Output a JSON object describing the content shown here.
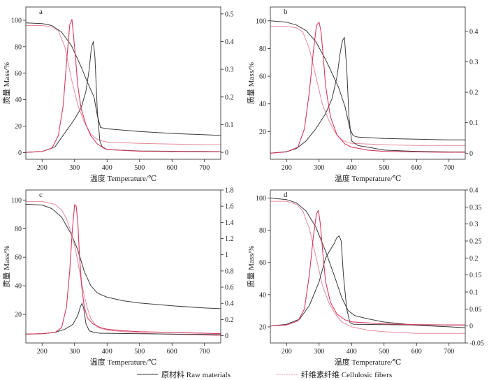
{
  "legend": {
    "raw_label": "原材料 Raw materials",
    "fiber_label": "纤维素纤维 Cellulosic fibers",
    "raw_color": "#3a3a3a",
    "fiber_color": "#e58a9c",
    "fiber_dtg_color": "#d23a5e"
  },
  "chart_data": [
    {
      "type": "line",
      "panel": "a",
      "xlabel": "温度 Temperature/℃",
      "ylabel": "质量 Mass/%",
      "xlim": [
        150,
        750
      ],
      "xticks": [
        200,
        300,
        400,
        500,
        600,
        700
      ],
      "ylim_left": [
        -5,
        110
      ],
      "yticks_left": [
        0,
        20,
        40,
        60,
        80,
        100
      ],
      "ylim_right": [
        -0.025,
        0.525
      ],
      "yticks_right": [
        0,
        0.1,
        0.2,
        0.3,
        0.4,
        0.5
      ],
      "series": [
        {
          "name": "Raw TG",
          "axis": "left",
          "x": [
            150,
            200,
            230,
            260,
            290,
            320,
            340,
            360,
            370,
            380,
            390,
            400,
            500,
            600,
            700,
            750
          ],
          "y": [
            98,
            97.5,
            96,
            91,
            81,
            65,
            53,
            42,
            28,
            19,
            18.5,
            18,
            16,
            14.5,
            13.5,
            13
          ]
        },
        {
          "name": "Fiber TG",
          "axis": "left",
          "x": [
            150,
            200,
            230,
            250,
            270,
            290,
            310,
            330,
            350,
            370,
            390,
            400,
            500,
            600,
            700,
            750
          ],
          "y": [
            96,
            96,
            95,
            92,
            80,
            56,
            36,
            23,
            14,
            10,
            8.5,
            8,
            7,
            6.5,
            6,
            6
          ]
        },
        {
          "name": "Raw DTG",
          "axis": "right",
          "x": [
            150,
            200,
            240,
            270,
            300,
            320,
            335,
            345,
            352,
            358,
            363,
            370,
            378,
            385,
            400,
            500,
            600,
            700,
            750
          ],
          "y": [
            0,
            0.003,
            0.02,
            0.07,
            0.12,
            0.16,
            0.22,
            0.3,
            0.38,
            0.4,
            0.34,
            0.15,
            0.04,
            0.02,
            0.01,
            0.005,
            0.004,
            0.003,
            0.002
          ]
        },
        {
          "name": "Fiber DTG",
          "axis": "right",
          "x": [
            150,
            200,
            230,
            250,
            265,
            275,
            285,
            292,
            300,
            310,
            320,
            335,
            350,
            370,
            390,
            400,
            500,
            600,
            700,
            750
          ],
          "y": [
            0,
            0.003,
            0.015,
            0.06,
            0.17,
            0.32,
            0.46,
            0.48,
            0.38,
            0.24,
            0.16,
            0.1,
            0.06,
            0.03,
            0.015,
            0.01,
            0.004,
            0.003,
            0.002,
            0.002
          ]
        }
      ]
    },
    {
      "type": "line",
      "panel": "b",
      "xlabel": "温度 Temperature/℃",
      "ylabel": "质量 Mass/%",
      "xlim": [
        150,
        750
      ],
      "xticks": [
        200,
        300,
        400,
        500,
        600,
        700
      ],
      "ylim_left": [
        0,
        110
      ],
      "yticks_left": [
        20,
        40,
        60,
        80,
        100
      ],
      "ylim_right": [
        -0.02,
        0.48
      ],
      "yticks_right": [
        0,
        0.1,
        0.2,
        0.3,
        0.4
      ],
      "series": [
        {
          "name": "Raw TG",
          "axis": "left",
          "x": [
            150,
            200,
            230,
            260,
            290,
            320,
            340,
            360,
            380,
            395,
            405,
            420,
            500,
            600,
            700,
            750
          ],
          "y": [
            100,
            99,
            97,
            93,
            85,
            72,
            62,
            52,
            38,
            22,
            17,
            16,
            15,
            14.5,
            14,
            14
          ]
        },
        {
          "name": "Fiber TG",
          "axis": "left",
          "x": [
            150,
            200,
            230,
            250,
            270,
            290,
            310,
            330,
            350,
            370,
            390,
            400,
            500,
            600,
            700,
            750
          ],
          "y": [
            96,
            96,
            95,
            92,
            80,
            60,
            40,
            28,
            19,
            14,
            12,
            11.5,
            10.5,
            10,
            10,
            10
          ]
        },
        {
          "name": "Raw DTG",
          "axis": "right",
          "x": [
            150,
            200,
            230,
            260,
            290,
            320,
            340,
            355,
            365,
            372,
            378,
            385,
            392,
            400,
            420,
            450,
            500,
            600,
            700,
            750
          ],
          "y": [
            0,
            0.005,
            0.015,
            0.04,
            0.08,
            0.13,
            0.18,
            0.25,
            0.33,
            0.37,
            0.38,
            0.28,
            0.12,
            0.04,
            0.025,
            0.02,
            0.01,
            0.006,
            0.004,
            0.004
          ]
        },
        {
          "name": "Fiber DTG",
          "axis": "right",
          "x": [
            150,
            200,
            235,
            255,
            270,
            282,
            292,
            300,
            306,
            312,
            320,
            335,
            355,
            380,
            400,
            450,
            500,
            600,
            700,
            750
          ],
          "y": [
            0,
            0.004,
            0.02,
            0.08,
            0.2,
            0.33,
            0.42,
            0.43,
            0.4,
            0.33,
            0.22,
            0.12,
            0.06,
            0.03,
            0.02,
            0.01,
            0.006,
            0.004,
            0.003,
            0.003
          ]
        }
      ]
    },
    {
      "type": "line",
      "panel": "c",
      "xlabel": "温度 Temperature/℃",
      "ylabel": "质量 Mass/%",
      "xlim": [
        150,
        750
      ],
      "xticks": [
        200,
        300,
        400,
        500,
        600,
        700
      ],
      "ylim_left": [
        0,
        107
      ],
      "yticks_left": [
        20,
        40,
        60,
        80,
        100
      ],
      "ylim_right": [
        -0.09,
        1.8
      ],
      "yticks_right": [
        0,
        0.2,
        0.4,
        0.6,
        0.8,
        1.0,
        1.2,
        1.4,
        1.6,
        1.8
      ],
      "series": [
        {
          "name": "Raw TG",
          "axis": "left",
          "x": [
            150,
            200,
            230,
            260,
            290,
            310,
            330,
            350,
            370,
            400,
            450,
            500,
            600,
            700,
            750
          ],
          "y": [
            97,
            96.5,
            94,
            88,
            76,
            65,
            50,
            40,
            35,
            32,
            29.5,
            28,
            26,
            24.5,
            24
          ]
        },
        {
          "name": "Fiber TG",
          "axis": "left",
          "x": [
            150,
            200,
            240,
            260,
            275,
            290,
            300,
            310,
            320,
            330,
            340,
            350,
            370,
            400,
            500,
            600,
            700,
            750
          ],
          "y": [
            99,
            99,
            97,
            93,
            87,
            77,
            68,
            57,
            44,
            33,
            24,
            17,
            11,
            9,
            7,
            6,
            5.5,
            5
          ]
        },
        {
          "name": "Raw DTG",
          "axis": "right",
          "x": [
            150,
            200,
            240,
            270,
            295,
            310,
            318,
            323,
            328,
            335,
            345,
            360,
            380,
            400,
            500,
            600,
            700,
            750
          ],
          "y": [
            0.02,
            0.025,
            0.04,
            0.08,
            0.14,
            0.25,
            0.36,
            0.4,
            0.34,
            0.15,
            0.06,
            0.04,
            0.03,
            0.03,
            0.025,
            0.02,
            0.018,
            0.015
          ]
        },
        {
          "name": "Fiber DTG",
          "axis": "right",
          "x": [
            150,
            200,
            240,
            260,
            275,
            285,
            293,
            300,
            305,
            310,
            315,
            322,
            330,
            340,
            355,
            380,
            400,
            450,
            500,
            600,
            700,
            750
          ],
          "y": [
            0.02,
            0.025,
            0.04,
            0.1,
            0.35,
            0.8,
            1.3,
            1.62,
            1.6,
            1.4,
            1.0,
            0.6,
            0.35,
            0.22,
            0.15,
            0.1,
            0.08,
            0.06,
            0.05,
            0.04,
            0.03,
            0.025
          ]
        }
      ]
    },
    {
      "type": "line",
      "panel": "d",
      "xlabel": "温度 Temperature/℃",
      "ylabel": "质量 Mass/%",
      "xlim": [
        150,
        750
      ],
      "xticks": [
        200,
        300,
        400,
        500,
        600,
        700
      ],
      "ylim_left": [
        10,
        105
      ],
      "yticks_left": [
        20,
        40,
        60,
        80,
        100
      ],
      "ylim_right": [
        -0.05,
        0.4
      ],
      "yticks_right": [
        -0.05,
        0,
        0.05,
        0.1,
        0.15,
        0.2,
        0.25,
        0.3,
        0.35,
        0.4
      ],
      "series": [
        {
          "name": "Raw TG",
          "axis": "left",
          "x": [
            150,
            200,
            230,
            260,
            290,
            320,
            350,
            370,
            390,
            410,
            450,
            500,
            600,
            700,
            750
          ],
          "y": [
            100,
            99,
            97,
            92,
            82,
            67,
            50,
            38,
            30,
            27,
            25,
            23,
            21,
            20,
            19.5
          ]
        },
        {
          "name": "Fiber TG",
          "axis": "left",
          "x": [
            150,
            200,
            230,
            250,
            270,
            290,
            310,
            330,
            350,
            370,
            400,
            450,
            500,
            600,
            700,
            750
          ],
          "y": [
            98,
            98,
            96,
            92,
            81,
            64,
            46,
            35,
            28,
            23,
            20,
            18,
            17,
            16,
            16,
            16
          ]
        },
        {
          "name": "Raw DTG",
          "axis": "right",
          "x": [
            150,
            200,
            240,
            270,
            300,
            320,
            335,
            345,
            355,
            362,
            368,
            375,
            385,
            395,
            405,
            500,
            600,
            700,
            750
          ],
          "y": [
            0,
            0.005,
            0.02,
            0.06,
            0.13,
            0.2,
            0.225,
            0.24,
            0.26,
            0.265,
            0.25,
            0.15,
            0.05,
            0.01,
            0.005,
            0.004,
            0.003,
            0.003,
            0.003
          ]
        },
        {
          "name": "Fiber DTG",
          "axis": "right",
          "x": [
            150,
            200,
            235,
            255,
            270,
            282,
            292,
            298,
            304,
            312,
            320,
            335,
            355,
            380,
            400,
            500,
            600,
            700,
            750
          ],
          "y": [
            0,
            0.003,
            0.015,
            0.05,
            0.15,
            0.26,
            0.33,
            0.34,
            0.3,
            0.21,
            0.13,
            0.07,
            0.035,
            0.018,
            0.012,
            0.006,
            0.004,
            0.003,
            0.003
          ]
        }
      ]
    }
  ]
}
